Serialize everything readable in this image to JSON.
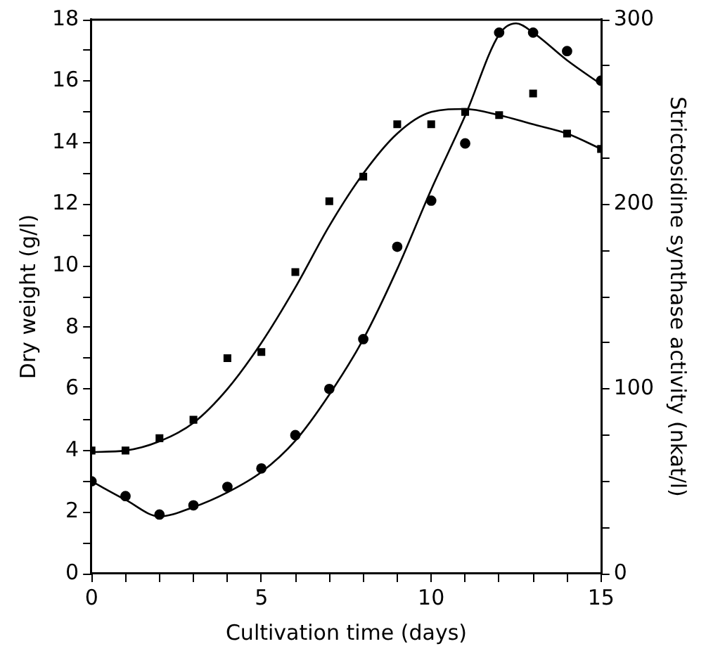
{
  "chart_data": {
    "type": "scatter",
    "xlabel": "Cultivation time (days)",
    "ylabel": "Dry weight (g/l)",
    "y2label": "Strictosidine synthase activity (nkat/l)",
    "xlim": [
      0,
      15
    ],
    "xticks": [
      0,
      {
        "value": 1,
        "label": null
      },
      {
        "value": 2,
        "label": null
      },
      {
        "value": 3,
        "label": null
      },
      {
        "value": 4,
        "label": null
      },
      5,
      {
        "value": 6,
        "label": null
      },
      {
        "value": 7,
        "label": null
      },
      {
        "value": 8,
        "label": null
      },
      {
        "value": 9,
        "label": null
      },
      10,
      {
        "value": 11,
        "label": null
      },
      {
        "value": 12,
        "label": null
      },
      {
        "value": 13,
        "label": null
      },
      {
        "value": 14,
        "label": null
      },
      15
    ],
    "ylim": [
      0,
      18
    ],
    "yticks": [
      0,
      {
        "value": 1,
        "label": null
      },
      2,
      {
        "value": 3,
        "label": null
      },
      4,
      {
        "value": 5,
        "label": null
      },
      6,
      {
        "value": 7,
        "label": null
      },
      8,
      {
        "value": 9,
        "label": null
      },
      10,
      {
        "value": 11,
        "label": null
      },
      12,
      {
        "value": 13,
        "label": null
      },
      14,
      {
        "value": 15,
        "label": null
      },
      16,
      {
        "value": 17,
        "label": null
      },
      18
    ],
    "y2lim": [
      0,
      300
    ],
    "y2ticks": [
      0,
      {
        "value": 25,
        "label": null
      },
      {
        "value": 50,
        "label": null
      },
      {
        "value": 75,
        "label": null
      },
      100,
      {
        "value": 125,
        "label": null
      },
      {
        "value": 150,
        "label": null
      },
      {
        "value": 175,
        "label": null
      },
      200,
      {
        "value": 225,
        "label": null
      },
      {
        "value": 250,
        "label": null
      },
      {
        "value": 275,
        "label": null
      },
      300
    ],
    "grid": false,
    "legend": false,
    "series": [
      {
        "type": "scatter",
        "marker": "square",
        "color": "#000000",
        "x": [
          0,
          1,
          2,
          3,
          4,
          5,
          6,
          7,
          8,
          9,
          10,
          11,
          12,
          13,
          14,
          15
        ],
        "values": [
          4.0,
          4.0,
          4.4,
          5.0,
          7.0,
          7.2,
          9.8,
          12.1,
          12.9,
          14.6,
          14.6,
          15.0,
          14.9,
          15.6,
          14.3,
          13.8
        ]
      },
      {
        "type": "scatter",
        "marker": "circle",
        "axis": "y2",
        "color": "#000000",
        "x": [
          0,
          1,
          2,
          3,
          4,
          5,
          6,
          7,
          8,
          9,
          10,
          11,
          12,
          13,
          14,
          15
        ],
        "values": [
          50,
          42,
          32,
          37,
          47,
          57,
          75,
          100,
          127,
          177,
          202,
          233,
          293,
          293,
          283,
          267
        ]
      },
      {
        "type": "line",
        "marker": "none",
        "color": "#000000",
        "x": [
          0,
          1,
          2,
          3,
          4,
          5,
          6,
          7,
          8,
          9,
          10,
          11,
          12,
          13,
          14,
          15
        ],
        "values": [
          3.95,
          4.0,
          4.3,
          4.9,
          6.0,
          7.5,
          9.3,
          11.3,
          13.0,
          14.3,
          15.0,
          15.1,
          14.9,
          14.6,
          14.3,
          13.8
        ]
      },
      {
        "type": "line",
        "marker": "none",
        "axis": "y2",
        "color": "#000000",
        "x": [
          0,
          1,
          2,
          3,
          4,
          5,
          6,
          7,
          8,
          9,
          10,
          11,
          12,
          12.5,
          13,
          14,
          15
        ],
        "values": [
          50,
          40,
          31,
          36,
          44,
          55,
          72,
          97,
          127,
          165,
          208,
          248,
          292,
          298,
          293,
          278,
          265
        ]
      }
    ]
  }
}
